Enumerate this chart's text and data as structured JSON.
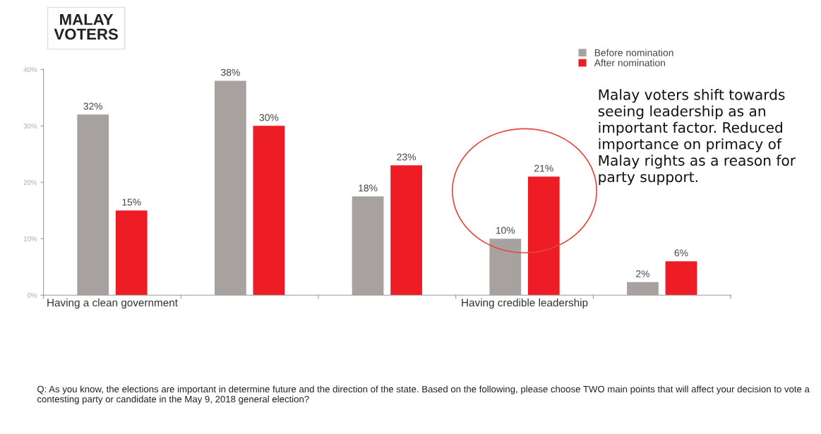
{
  "chart_data": {
    "type": "bar",
    "title": "MALAY\nVOTERS",
    "categories": [
      "Having a clean government",
      null,
      null,
      "Having credible leadership",
      null
    ],
    "series": [
      {
        "name": "Before nomination",
        "color": "#a7a2a0",
        "values": [
          32,
          38,
          17.5,
          10,
          2.3
        ],
        "value_labels": [
          "32%",
          "38%",
          "18%",
          "10%",
          "2%"
        ]
      },
      {
        "name": "After nomination",
        "color": "#ee1c24",
        "values": [
          15,
          30,
          23,
          21,
          6
        ],
        "value_labels": [
          "15%",
          "30%",
          "23%",
          "21%",
          "6%"
        ]
      }
    ],
    "ylim": [
      0,
      40
    ],
    "yticks": [
      {
        "value": 0,
        "label": "0%"
      },
      {
        "value": 10,
        "label": "10%"
      },
      {
        "value": 20,
        "label": "20%"
      },
      {
        "value": 30,
        "label": "30%"
      },
      {
        "value": 40,
        "label": "40%"
      }
    ],
    "grid": false,
    "legend": "top right",
    "annotations": [
      "Malay voters shift towards seeing leadership as an important factor. Reduced importance on primacy of Malay rights as a reason for party support.",
      "Q: As you know, the elections are important in determine future and the direction of the state. Based on the following, please choose TWO main points that will affect your decision to vote a contesting party or candidate in the May 9, 2018 general election?"
    ]
  }
}
